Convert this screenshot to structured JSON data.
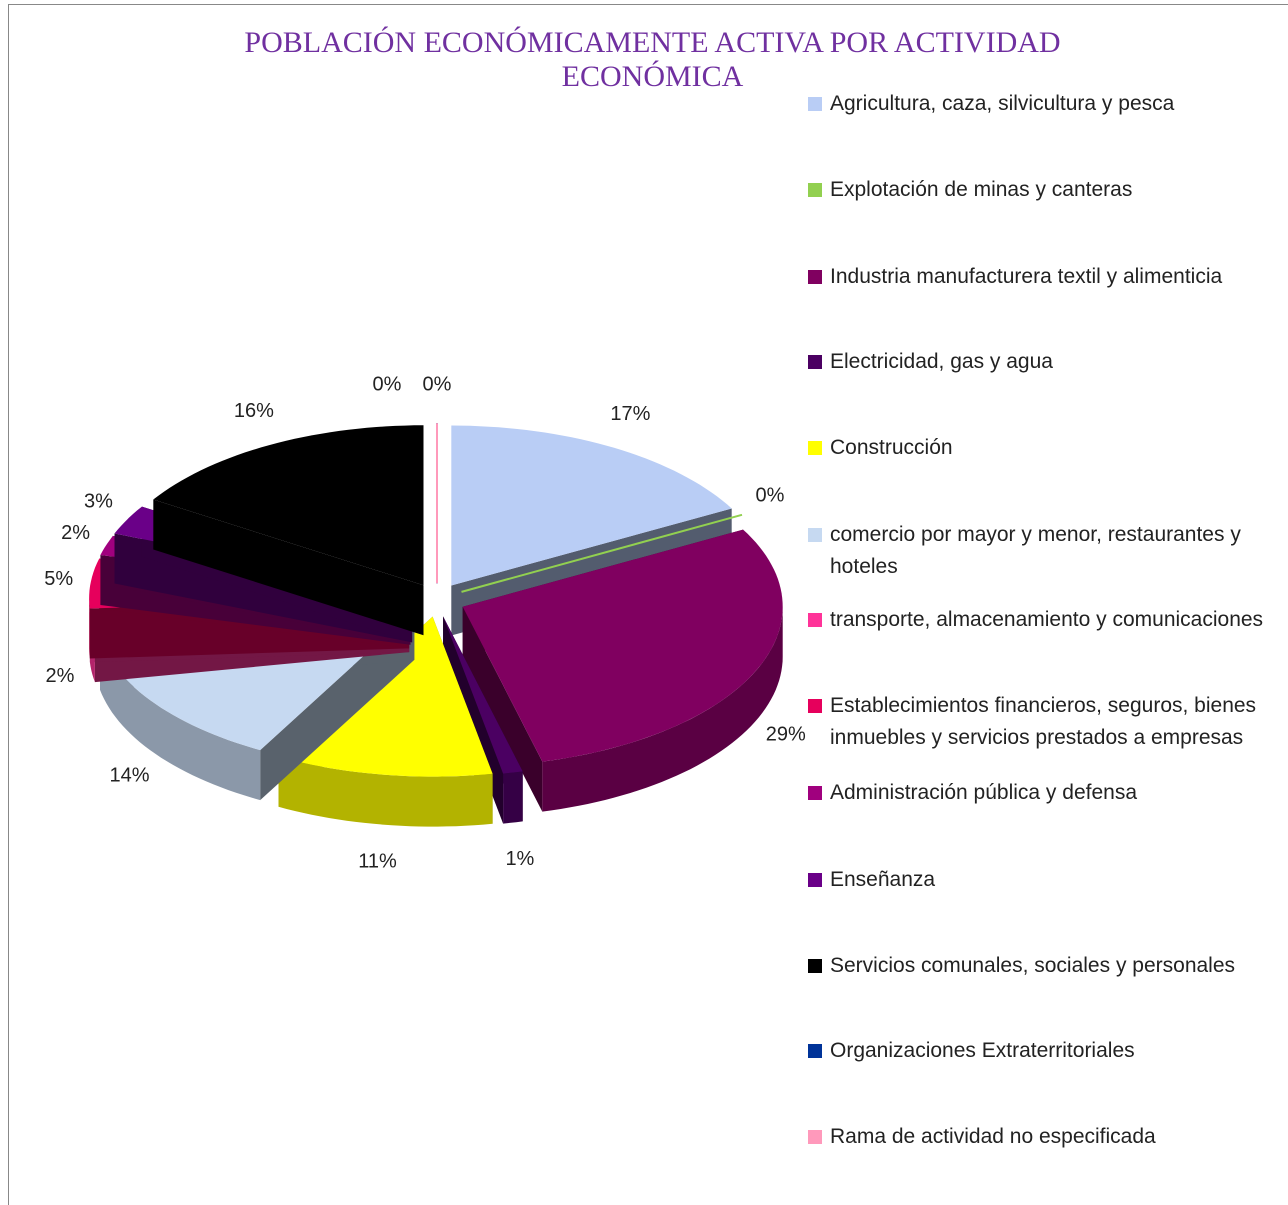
{
  "chart_data": {
    "type": "pie",
    "title": "POBLACIÓN ECONÓMICAMENTE ACTIVA POR ACTIVIDAD ECONÓMICA",
    "categories": [
      "Agricultura, caza, silvicultura y pesca",
      "Explotación de minas y canteras",
      "Industria manufacturera textil y alimenticia",
      "Electricidad, gas y agua",
      "Construcción",
      "comercio por mayor y menor, restaurantes y hoteles",
      "transporte, almacenamiento y comunicaciones",
      "Establecimientos financieros, seguros, bienes inmuebles y servicios prestados a empresas",
      "Administración pública y defensa",
      "Enseñanza",
      "Servicios comunales, sociales y personales",
      "Organizaciones Extraterritoriales",
      "Rama de actividad no especificada"
    ],
    "values": [
      17,
      0,
      29,
      1,
      11,
      14,
      2,
      5,
      2,
      3,
      16,
      0,
      0
    ],
    "value_labels": [
      "17%",
      "0%",
      "29%",
      "1%",
      "11%",
      "14%",
      "2%",
      "5%",
      "2%",
      "3%",
      "16%",
      "0%",
      "0%"
    ],
    "colors": [
      "#b9cdf5",
      "#92d050",
      "#800060",
      "#4b0062",
      "#ffff00",
      "#c6d9f1",
      "#ff3399",
      "#e6005c",
      "#a0007e",
      "#6a0088",
      "#000000",
      "#003399",
      "#ff99bb"
    ],
    "legend": "right"
  }
}
